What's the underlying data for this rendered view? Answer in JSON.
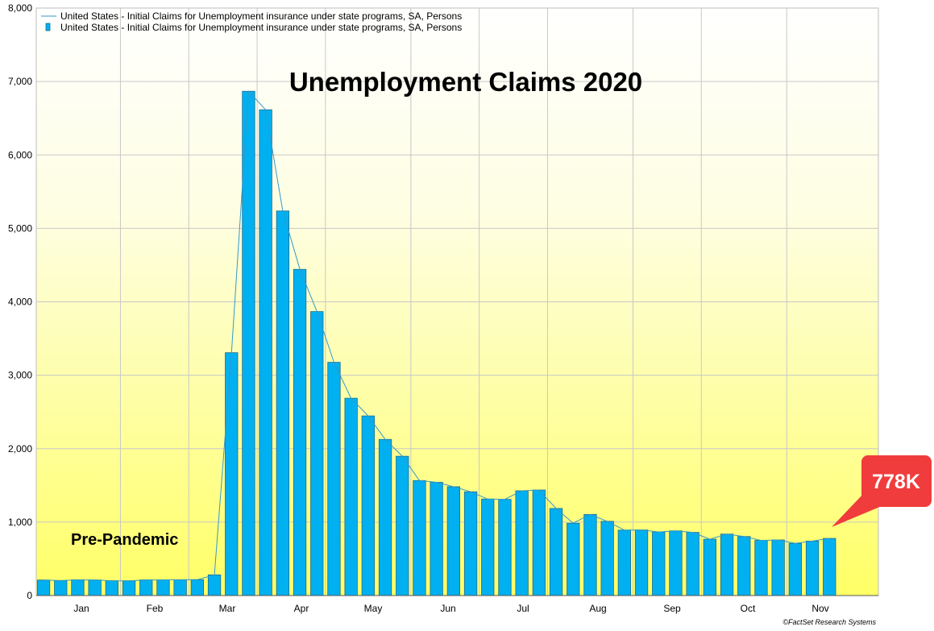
{
  "chart_data": {
    "type": "bar",
    "title": "Unemployment Claims 2020",
    "annotation_left": "Pre-Pandemic",
    "callout": "778K",
    "credit": "©FactSet Research Systems",
    "xlabel": "",
    "ylabel": "",
    "ylim": [
      0,
      8000
    ],
    "yticks": [
      0,
      1000,
      2000,
      3000,
      4000,
      5000,
      6000,
      7000,
      8000
    ],
    "ytick_labels": [
      "0",
      "1,000",
      "2,000",
      "3,000",
      "4,000",
      "5,000",
      "6,000",
      "7,000",
      "8,000"
    ],
    "months": [
      "Jan",
      "Feb",
      "Mar",
      "Apr",
      "May",
      "Jun",
      "Jul",
      "Aug",
      "Sep",
      "Oct",
      "Nov"
    ],
    "grid": true,
    "legend_position": "top-left",
    "legend": [
      {
        "kind": "line",
        "label": "United States - Initial Claims for Unemployment insurance under state programs, SA, Persons"
      },
      {
        "kind": "bar",
        "label": "United States - Initial Claims for Unemployment insurance under state programs, SA, Persons"
      }
    ],
    "bar_color": "#00b0f0",
    "line_color": "#3399cc",
    "callout_color": "#f03c3c",
    "series": [
      {
        "name": "United States - Initial Claims for Unemployment insurance under state programs, SA, Persons",
        "values": [
          211,
          204,
          214,
          212,
          202,
          201,
          213,
          213,
          215,
          216,
          282,
          3307,
          6867,
          6615,
          5237,
          4442,
          3867,
          3176,
          2687,
          2446,
          2126,
          1897,
          1566,
          1542,
          1482,
          1413,
          1314,
          1310,
          1427,
          1437,
          1186,
          985,
          1104,
          1011,
          891,
          893,
          866,
          881,
          860,
          767,
          837,
          804,
          751,
          757,
          711,
          742,
          778
        ]
      }
    ]
  }
}
